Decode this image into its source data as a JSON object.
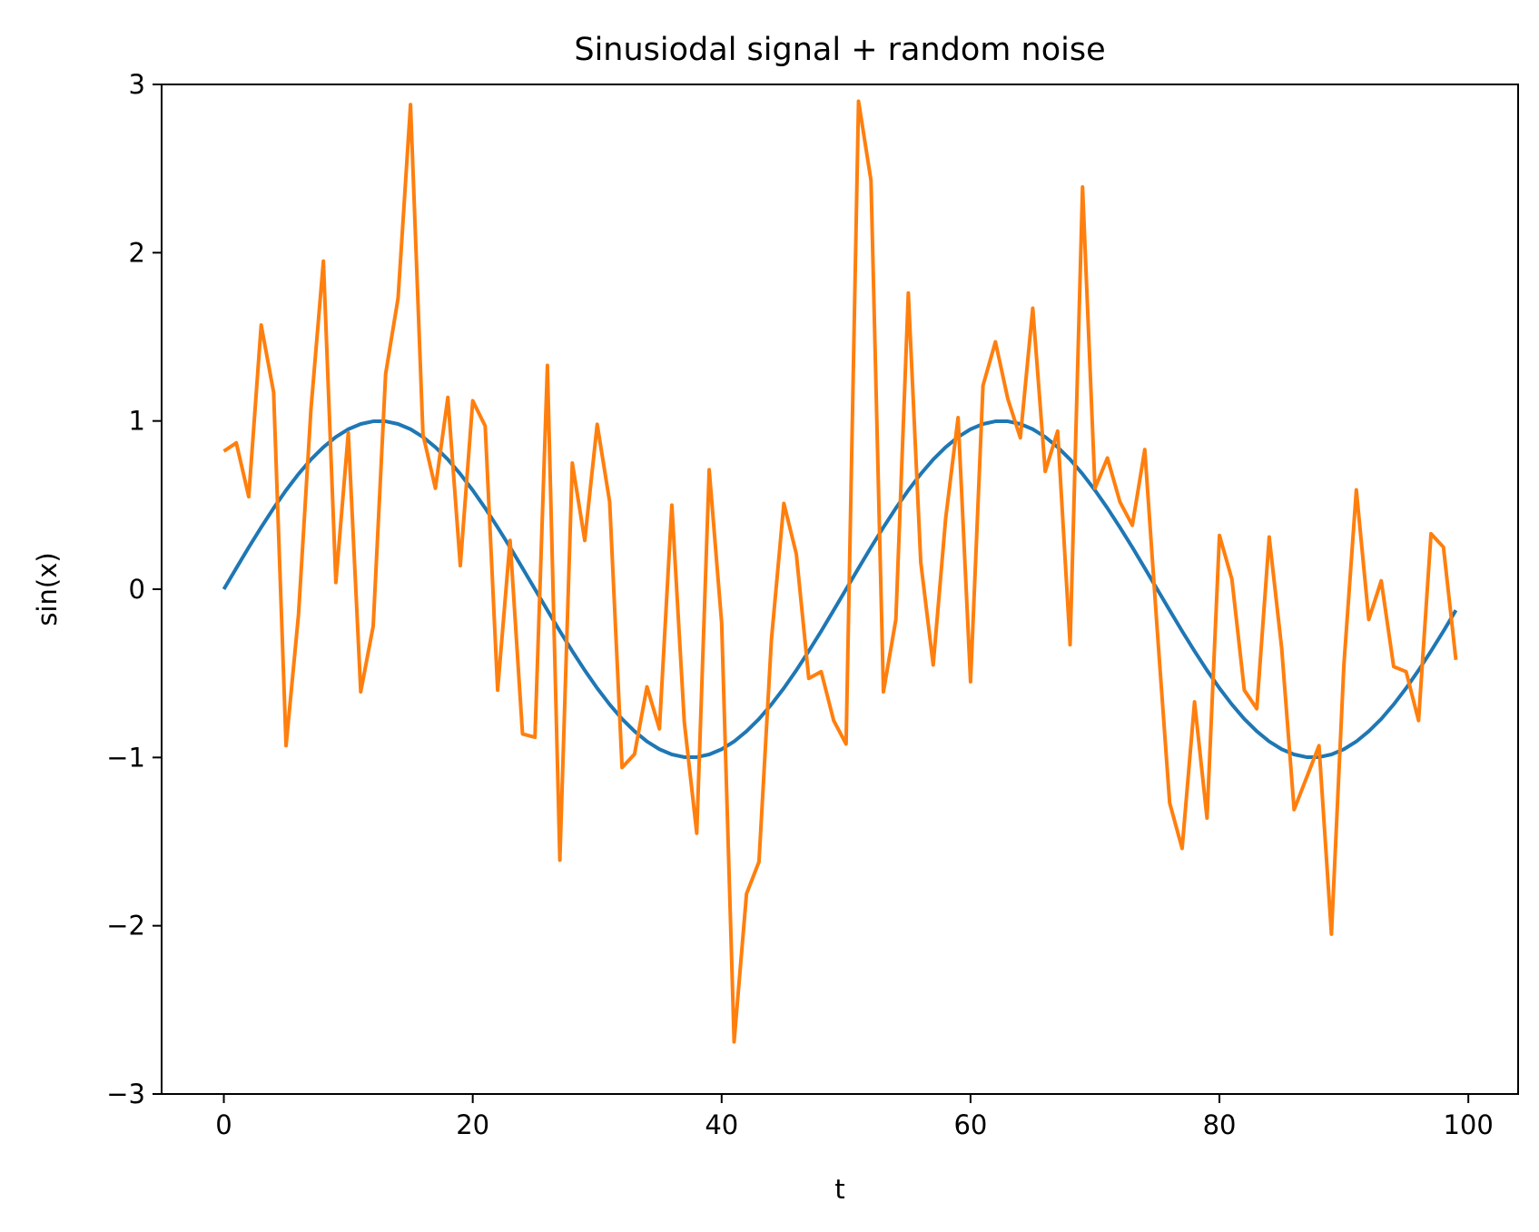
{
  "chart_data": {
    "type": "line",
    "title": "Sinusiodal signal + random noise",
    "xlabel": "t",
    "ylabel": "sin(x)",
    "xlim": [
      -5,
      104
    ],
    "ylim": [
      -3,
      3
    ],
    "xticks": [
      0,
      20,
      40,
      60,
      80,
      100
    ],
    "yticks": [
      -3,
      -2,
      -1,
      0,
      1,
      2,
      3
    ],
    "xtick_labels": [
      "0",
      "20",
      "40",
      "60",
      "80",
      "100"
    ],
    "ytick_labels": [
      "−3",
      "−2",
      "−1",
      "0",
      "1",
      "2",
      "3"
    ],
    "grid": false,
    "series": [
      {
        "color": "#1f77b4",
        "x": [
          0,
          1,
          2,
          3,
          4,
          5,
          6,
          7,
          8,
          9,
          10,
          11,
          12,
          13,
          14,
          15,
          16,
          17,
          18,
          19,
          20,
          21,
          22,
          23,
          24,
          25,
          26,
          27,
          28,
          29,
          30,
          31,
          32,
          33,
          34,
          35,
          36,
          37,
          38,
          39,
          40,
          41,
          42,
          43,
          44,
          45,
          46,
          47,
          48,
          49,
          50,
          51,
          52,
          53,
          54,
          55,
          56,
          57,
          58,
          59,
          60,
          61,
          62,
          63,
          64,
          65,
          66,
          67,
          68,
          69,
          70,
          71,
          72,
          73,
          74,
          75,
          76,
          77,
          78,
          79,
          80,
          81,
          82,
          83,
          84,
          85,
          86,
          87,
          88,
          89,
          90,
          91,
          92,
          93,
          94,
          95,
          96,
          97,
          98,
          99
        ],
        "y": [
          0.0,
          0.125,
          0.249,
          0.368,
          0.482,
          0.588,
          0.685,
          0.771,
          0.844,
          0.905,
          0.951,
          0.982,
          0.998,
          0.998,
          0.982,
          0.951,
          0.905,
          0.844,
          0.771,
          0.685,
          0.588,
          0.482,
          0.368,
          0.249,
          0.125,
          0.0,
          -0.125,
          -0.249,
          -0.368,
          -0.482,
          -0.588,
          -0.685,
          -0.771,
          -0.844,
          -0.905,
          -0.951,
          -0.982,
          -0.998,
          -0.998,
          -0.982,
          -0.951,
          -0.905,
          -0.844,
          -0.771,
          -0.685,
          -0.588,
          -0.482,
          -0.368,
          -0.249,
          -0.125,
          0.0,
          0.125,
          0.249,
          0.368,
          0.482,
          0.588,
          0.685,
          0.771,
          0.844,
          0.905,
          0.951,
          0.982,
          0.998,
          0.998,
          0.982,
          0.951,
          0.905,
          0.844,
          0.771,
          0.685,
          0.588,
          0.482,
          0.368,
          0.249,
          0.125,
          0.0,
          -0.125,
          -0.249,
          -0.368,
          -0.482,
          -0.588,
          -0.685,
          -0.771,
          -0.844,
          -0.905,
          -0.951,
          -0.982,
          -0.998,
          -0.998,
          -0.982,
          -0.951,
          -0.905,
          -0.844,
          -0.771,
          -0.685,
          -0.588,
          -0.482,
          -0.368,
          -0.249,
          -0.125
        ]
      },
      {
        "color": "#ff7f0e",
        "x": [
          0,
          1,
          2,
          3,
          4,
          5,
          6,
          7,
          8,
          9,
          10,
          11,
          12,
          13,
          14,
          15,
          16,
          17,
          18,
          19,
          20,
          21,
          22,
          23,
          24,
          25,
          26,
          27,
          28,
          29,
          30,
          31,
          32,
          33,
          34,
          35,
          36,
          37,
          38,
          39,
          40,
          41,
          42,
          43,
          44,
          45,
          46,
          47,
          48,
          49,
          50,
          51,
          52,
          53,
          54,
          55,
          56,
          57,
          58,
          59,
          60,
          61,
          62,
          63,
          64,
          65,
          66,
          67,
          68,
          69,
          70,
          71,
          72,
          73,
          74,
          75,
          76,
          77,
          78,
          79,
          80,
          81,
          82,
          83,
          84,
          85,
          86,
          87,
          88,
          89,
          90,
          91,
          92,
          93,
          94,
          95,
          96,
          97,
          98,
          99
        ],
        "y": [
          0.82,
          0.87,
          0.55,
          1.57,
          1.17,
          -0.93,
          -0.15,
          1.07,
          1.95,
          0.04,
          0.93,
          -0.61,
          -0.22,
          1.28,
          1.73,
          2.88,
          0.92,
          0.6,
          1.14,
          0.14,
          1.12,
          0.97,
          -0.6,
          0.29,
          -0.86,
          -0.88,
          1.33,
          -1.61,
          0.75,
          0.29,
          0.98,
          0.52,
          -1.06,
          -0.98,
          -0.58,
          -0.83,
          0.5,
          -0.79,
          -1.45,
          0.71,
          -0.2,
          -2.69,
          -1.81,
          -1.62,
          -0.3,
          0.51,
          0.21,
          -0.53,
          -0.49,
          -0.78,
          -0.92,
          2.9,
          2.43,
          -0.61,
          -0.18,
          1.76,
          0.16,
          -0.45,
          0.42,
          1.02,
          -0.55,
          1.21,
          1.47,
          1.13,
          0.9,
          1.67,
          0.7,
          0.94,
          -0.33,
          2.39,
          0.6,
          0.78,
          0.52,
          0.38,
          0.83,
          -0.24,
          -1.27,
          -1.54,
          -0.67,
          -1.36,
          0.32,
          0.06,
          -0.6,
          -0.71,
          0.31,
          -0.35,
          -1.31,
          -1.12,
          -0.93,
          -2.05,
          -0.45,
          0.59,
          -0.18,
          0.05,
          -0.46,
          -0.49,
          -0.78,
          0.33,
          0.25,
          -0.42
        ]
      }
    ]
  }
}
